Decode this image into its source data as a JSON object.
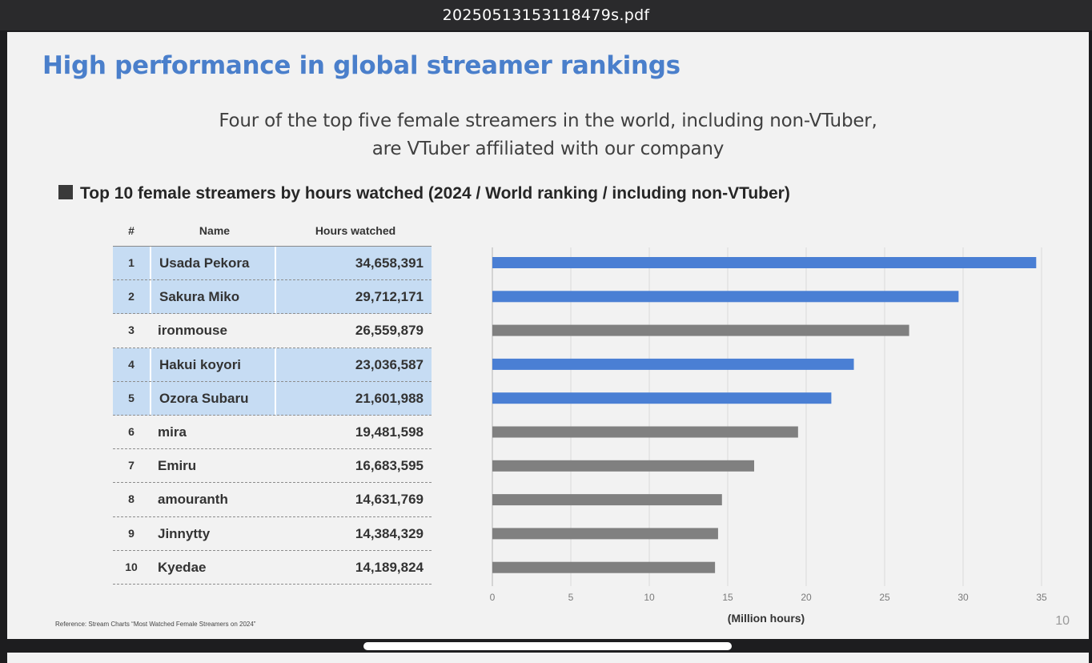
{
  "window": {
    "title": "20250513153118479s.pdf"
  },
  "slide": {
    "title": "High performance in global streamer rankings",
    "subtitle_line1": "Four of the top five female streamers in the world, including non-VTuber,",
    "subtitle_line2": "are VTuber affiliated with our company",
    "section_heading": "Top 10 female streamers by hours watched (2024 / World ranking / including non-VTuber)",
    "reference": "Reference:  Stream Charts “Most Watched Female Streamers on 2024”",
    "page_number": "10"
  },
  "table": {
    "headers": {
      "rank": "#",
      "name": "Name",
      "hours": "Hours watched"
    },
    "rows": [
      {
        "rank": "1",
        "name": "Usada Pekora",
        "hours": "34,658,391",
        "highlight": true
      },
      {
        "rank": "2",
        "name": "Sakura Miko",
        "hours": "29,712,171",
        "highlight": true
      },
      {
        "rank": "3",
        "name": "ironmouse",
        "hours": "26,559,879",
        "highlight": false
      },
      {
        "rank": "4",
        "name": "Hakui koyori",
        "hours": "23,036,587",
        "highlight": true
      },
      {
        "rank": "5",
        "name": "Ozora Subaru",
        "hours": "21,601,988",
        "highlight": true
      },
      {
        "rank": "6",
        "name": "mira",
        "hours": "19,481,598",
        "highlight": false
      },
      {
        "rank": "7",
        "name": "Emiru",
        "hours": "16,683,595",
        "highlight": false
      },
      {
        "rank": "8",
        "name": "amouranth",
        "hours": "14,631,769",
        "highlight": false
      },
      {
        "rank": "9",
        "name": "Jinnytty",
        "hours": "14,384,329",
        "highlight": false
      },
      {
        "rank": "10",
        "name": "Kyedae",
        "hours": "14,189,824",
        "highlight": false
      }
    ]
  },
  "chart_data": {
    "type": "bar",
    "orientation": "horizontal",
    "categories": [
      "1",
      "2",
      "3",
      "4",
      "5",
      "6",
      "7",
      "8",
      "9",
      "10"
    ],
    "values": [
      34.658391,
      29.712171,
      26.559879,
      23.036587,
      21.601988,
      19.481598,
      16.683595,
      14.631769,
      14.384329,
      14.189824
    ],
    "bar_colors": [
      "#4a7fd4",
      "#4a7fd4",
      "#808080",
      "#4a7fd4",
      "#4a7fd4",
      "#808080",
      "#808080",
      "#808080",
      "#808080",
      "#808080"
    ],
    "xlabel": "(Million hours)",
    "xlim": [
      0,
      35
    ],
    "xticks": [
      "0",
      "5",
      "10",
      "15",
      "20",
      "25",
      "30",
      "35"
    ],
    "grid": true
  },
  "colors": {
    "title": "#4a7fcb",
    "vtuber_bar": "#4a7fd4",
    "other_bar": "#808080",
    "highlight_row": "#c6dcf3"
  }
}
